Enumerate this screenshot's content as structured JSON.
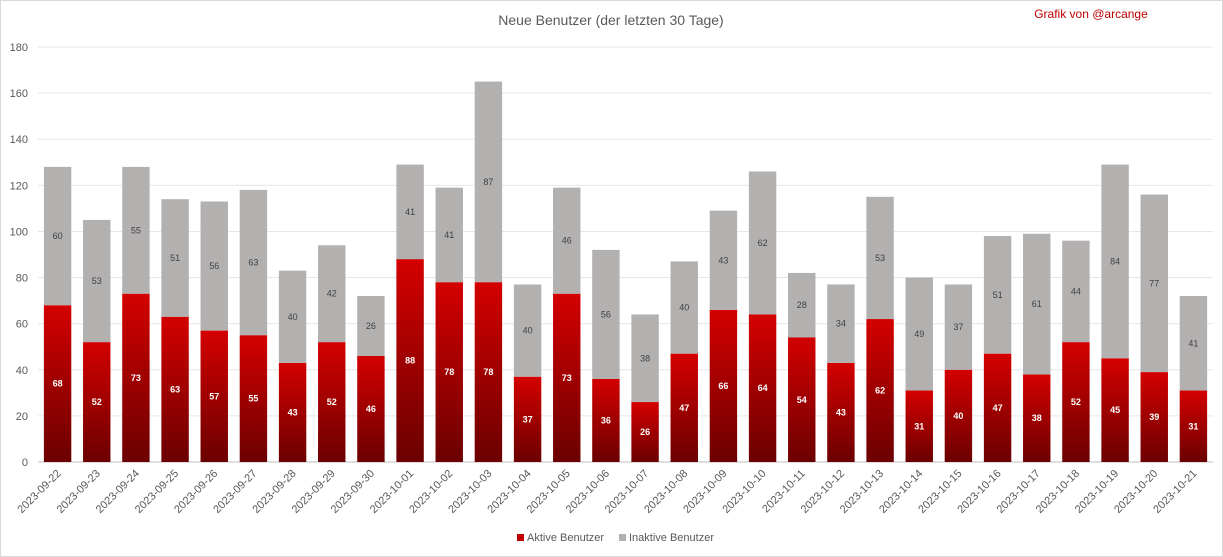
{
  "chart_data": {
    "type": "bar",
    "stacked": true,
    "title": "Neue Benutzer (der letzten 30 Tage)",
    "credit": "Grafik von @arcange",
    "ylim": [
      0,
      180
    ],
    "yticks": [
      0,
      20,
      40,
      60,
      80,
      100,
      120,
      140,
      160,
      180
    ],
    "grid": true,
    "legend_position": "bottom",
    "categories": [
      "2023-09-22",
      "2023-09-23",
      "2023-09-24",
      "2023-09-25",
      "2023-09-26",
      "2023-09-27",
      "2023-09-28",
      "2023-09-29",
      "2023-09-30",
      "2023-10-01",
      "2023-10-02",
      "2023-10-03",
      "2023-10-04",
      "2023-10-05",
      "2023-10-06",
      "2023-10-07",
      "2023-10-08",
      "2023-10-09",
      "2023-10-10",
      "2023-10-11",
      "2023-10-12",
      "2023-10-13",
      "2023-10-14",
      "2023-10-15",
      "2023-10-16",
      "2023-10-17",
      "2023-10-18",
      "2023-10-19",
      "2023-10-20",
      "2023-10-21"
    ],
    "series": [
      {
        "name": "Aktive Benutzer",
        "color": "#c00000",
        "values": [
          68,
          52,
          73,
          63,
          57,
          55,
          43,
          52,
          46,
          88,
          78,
          78,
          37,
          73,
          36,
          26,
          47,
          66,
          64,
          54,
          43,
          62,
          31,
          40,
          47,
          38,
          52,
          45,
          39,
          31
        ]
      },
      {
        "name": "Inaktive Benutzer",
        "color": "#b3b0b0",
        "values": [
          60,
          53,
          55,
          51,
          56,
          63,
          40,
          42,
          26,
          41,
          41,
          87,
          40,
          46,
          56,
          38,
          40,
          43,
          62,
          28,
          34,
          53,
          49,
          37,
          51,
          61,
          44,
          84,
          77,
          41
        ]
      }
    ]
  }
}
